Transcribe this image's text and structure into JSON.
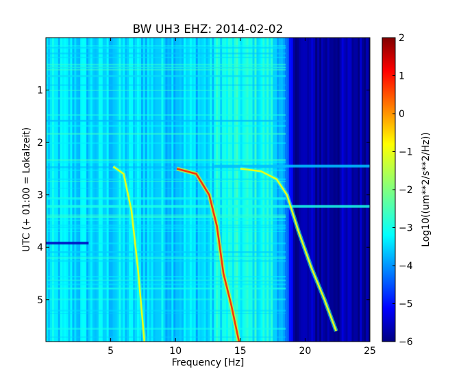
{
  "chart_data": {
    "type": "heatmap",
    "title": "BW UH3 EHZ: 2014-02-02",
    "xlabel": "Frequency [Hz]",
    "ylabel": "UTC (+ 01:00 = Lokalzeit)",
    "xlim": [
      0,
      25
    ],
    "ylim": [
      5.8,
      0
    ],
    "x_ticks": [
      5,
      10,
      15,
      20,
      25
    ],
    "y_ticks": [
      1,
      2,
      3,
      4,
      5
    ],
    "colormap": "jet",
    "colorbar": {
      "label": "Log10((um**2/s**2/Hz))",
      "range": [
        -6,
        2
      ],
      "ticks": [
        -6,
        -5,
        -4,
        -3,
        -2,
        -1,
        0,
        1,
        2
      ]
    },
    "background_level": {
      "below_18Hz": -3.3,
      "above_19Hz": -5.7
    },
    "traces": [
      {
        "points": [
          [
            5.2,
            2.46
          ],
          [
            6.0,
            2.6
          ],
          [
            6.6,
            3.3
          ],
          [
            7.1,
            4.4
          ],
          [
            7.6,
            5.8
          ]
        ],
        "level": -1.2
      },
      {
        "points": [
          [
            10.1,
            2.5
          ],
          [
            11.6,
            2.6
          ],
          [
            12.6,
            3.0
          ],
          [
            13.2,
            3.6
          ],
          [
            13.7,
            4.5
          ],
          [
            14.3,
            5.1
          ],
          [
            14.9,
            5.8
          ]
        ],
        "level": 0.6
      },
      {
        "points": [
          [
            15.0,
            2.5
          ],
          [
            16.6,
            2.55
          ],
          [
            17.8,
            2.7
          ],
          [
            18.6,
            3.0
          ],
          [
            19.5,
            3.7
          ],
          [
            20.5,
            4.4
          ],
          [
            21.5,
            5.0
          ],
          [
            22.4,
            5.6
          ]
        ],
        "level": -1.2
      }
    ],
    "horizontal_bands": [
      {
        "y": 2.45,
        "x": [
          13,
          25
        ],
        "level": -3.5
      },
      {
        "y": 3.22,
        "x": [
          0,
          25
        ],
        "level": -2.8
      },
      {
        "y": 3.92,
        "x": [
          0,
          3.3
        ],
        "level": -5.5
      }
    ]
  }
}
